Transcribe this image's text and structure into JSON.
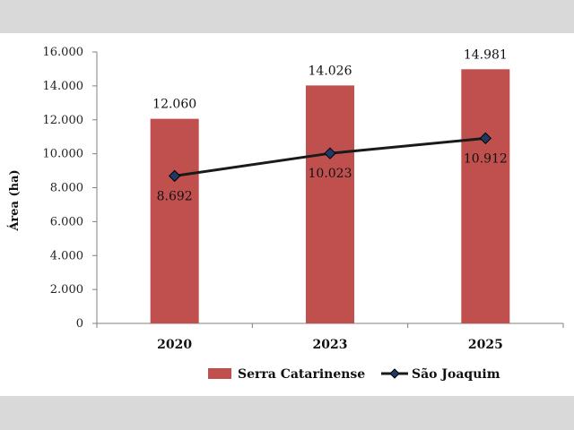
{
  "chart_data": {
    "type": "bar+line",
    "categories": [
      "2020",
      "2023",
      "2025"
    ],
    "series": [
      {
        "name": "Serra Catarinense",
        "kind": "bar",
        "color": "#c0504d",
        "values": [
          12060,
          14026,
          14981
        ],
        "labels": [
          "12.060",
          "14.026",
          "14.981"
        ]
      },
      {
        "name": "São Joaquim",
        "kind": "line",
        "color": "#1a1a1a",
        "marker_color": "#1f3864",
        "values": [
          8692,
          10023,
          10912
        ],
        "labels": [
          "8.692",
          "10.023",
          "10.912"
        ]
      }
    ],
    "ylabel": "Área (ha)",
    "ylim": [
      0,
      16000
    ],
    "yticks": [
      0,
      2000,
      4000,
      6000,
      8000,
      10000,
      12000,
      14000,
      16000
    ],
    "ytick_labels": [
      "0",
      "2.000",
      "4.000",
      "6.000",
      "8.000",
      "10.000",
      "12.000",
      "14.000",
      "16.000"
    ],
    "legend_position": "bottom"
  }
}
